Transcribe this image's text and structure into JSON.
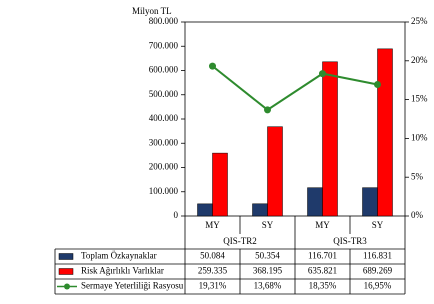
{
  "chart_data": {
    "type": "bar",
    "y_axis_label": "Milyon TL",
    "categories": [
      "MY",
      "SY",
      "MY",
      "SY"
    ],
    "groups": [
      "QIS-TR2",
      "QIS-TR3"
    ],
    "series": [
      {
        "name": "Toplam Özkaynaklar",
        "type": "bar",
        "color": "#1f3a6b",
        "values": [
          50084,
          50354,
          116701,
          116831
        ],
        "value_labels": [
          "50.084",
          "50.354",
          "116.701",
          "116.831"
        ]
      },
      {
        "name": "Risk Ağırlıklı Varlıklar",
        "type": "bar",
        "color": "#ff0000",
        "values": [
          259335,
          368195,
          635821,
          689269
        ],
        "value_labels": [
          "259.335",
          "368.195",
          "635.821",
          "689.269"
        ]
      },
      {
        "name": "Sermaye Yeterliliği Rasyosu",
        "type": "line",
        "axis": "y2",
        "color": "#2e8b2e",
        "values": [
          19.31,
          13.68,
          18.35,
          16.95
        ],
        "value_labels": [
          "19,31%",
          "13,68%",
          "18,35%",
          "16,95%"
        ]
      }
    ],
    "ylim": [
      0,
      800000
    ],
    "yticks": [
      0,
      {
        "value": 100000,
        "label": "100.000"
      },
      {
        "value": 200000,
        "label": "200.000"
      },
      {
        "value": 300000,
        "label": "300.000"
      },
      {
        "value": 400000,
        "label": "400.000"
      },
      {
        "value": 500000,
        "label": "500.000"
      },
      {
        "value": 600000,
        "label": "600.000"
      },
      {
        "value": 700000,
        "label": "700.000"
      },
      {
        "value": 800000,
        "label": "800.000"
      }
    ],
    "y2lim": [
      0,
      25
    ],
    "y2ticks": [
      {
        "value": 0,
        "label": "0%"
      },
      {
        "value": 5,
        "label": "5%"
      },
      {
        "value": 10,
        "label": "10%"
      },
      {
        "value": 15,
        "label": "15%"
      },
      {
        "value": 20,
        "label": "20%"
      },
      {
        "value": 25,
        "label": "25%"
      }
    ]
  }
}
